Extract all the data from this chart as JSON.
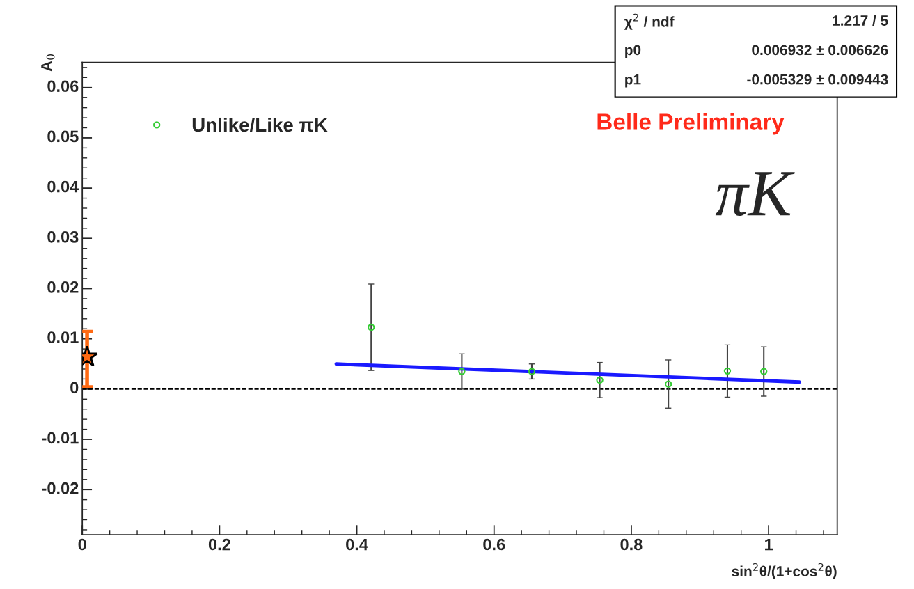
{
  "chart_data": {
    "type": "scatter",
    "xlabel": "sin$^{2}$θ/(1+cos$^{2}$θ)",
    "ylabel": "A$_{0}$",
    "xlim": [
      0,
      1.1
    ],
    "ylim": [
      -0.029,
      0.065
    ],
    "xticks": [
      0,
      0.2,
      0.4,
      0.6,
      0.8,
      1
    ],
    "yticks": [
      -0.02,
      -0.01,
      0,
      0.01,
      0.02,
      0.03,
      0.04,
      0.05,
      0.06
    ],
    "series": [
      {
        "name": "Unlike/Like πK",
        "color": "#33cc33",
        "marker": "circle",
        "x": [
          0.421,
          0.553,
          0.655,
          0.754,
          0.854,
          0.94,
          0.993
        ],
        "values": [
          0.0123,
          0.0035,
          0.0035,
          0.0018,
          0.001,
          0.0036,
          0.0035
        ],
        "errors": [
          0.0086,
          0.0035,
          0.0015,
          0.0035,
          0.0048,
          0.0052,
          0.0049
        ]
      },
      {
        "type": "line",
        "color": "#1a1aff",
        "marker": "none",
        "x": [
          0.37,
          1.045
        ],
        "values": [
          0.005,
          0.0014
        ]
      },
      {
        "color": "#ff6a13",
        "marker": "star",
        "x": [
          0.007
        ],
        "values": [
          0.0064
        ],
        "errors": [
          [
            0.0005,
            0.0115
          ]
        ]
      }
    ],
    "ref_lines": [
      {
        "axis": "y",
        "value": 0,
        "line_style": "dashed",
        "color": "#000000"
      }
    ],
    "annotations": [
      "χ$^{2}$ / ndf",
      "1.217 / 5",
      "p0",
      "0.006932 ± 0.006626",
      "p1",
      "-0.005329 ± 0.009443",
      "Belle Preliminary",
      "πK"
    ],
    "legend": "top left",
    "grid": false
  }
}
